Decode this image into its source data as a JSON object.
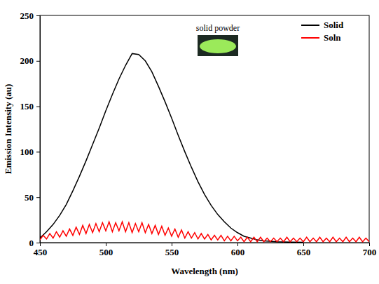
{
  "chart_data": {
    "type": "line",
    "x_label": "Wavelength (nm)",
    "y_label": "Emission Intensity (au)",
    "annotations": [
      "solid powder"
    ],
    "xlim": [
      450,
      700
    ],
    "xticks": [
      450,
      500,
      550,
      600,
      650,
      700
    ],
    "ylim": [
      0,
      250
    ],
    "yticks": [
      0,
      50,
      100,
      150,
      200,
      250
    ],
    "legend": "upper right",
    "series": [
      {
        "name": "Solid",
        "color": "#000000",
        "x": [
          450,
          455,
          460,
          465,
          470,
          475,
          480,
          485,
          490,
          495,
          500,
          505,
          510,
          515,
          520,
          525,
          530,
          535,
          540,
          545,
          550,
          555,
          560,
          565,
          570,
          575,
          580,
          585,
          590,
          595,
          600,
          605,
          610,
          615,
          620,
          630,
          640,
          650
        ],
        "values": [
          5,
          12,
          20,
          30,
          42,
          57,
          73,
          90,
          108,
          126,
          145,
          163,
          180,
          195,
          208,
          207,
          200,
          188,
          172,
          155,
          137,
          118,
          100,
          83,
          67,
          53,
          41,
          31,
          23,
          16,
          11,
          7,
          5,
          3,
          2,
          1,
          0.5,
          0.3
        ]
      },
      {
        "name": "Soln",
        "color": "#ff0000",
        "x": [
          450,
          452.5,
          455,
          457.5,
          460,
          462.5,
          465,
          467.5,
          470,
          472.5,
          475,
          477.5,
          480,
          482.5,
          485,
          487.5,
          490,
          492.5,
          495,
          497.5,
          500,
          502.5,
          505,
          507.5,
          510,
          512.5,
          515,
          517.5,
          520,
          522.5,
          525,
          527.5,
          530,
          532.5,
          535,
          537.5,
          540,
          542.5,
          545,
          547.5,
          550,
          552.5,
          555,
          557.5,
          560,
          562.5,
          565,
          567.5,
          570,
          572.5,
          575,
          577.5,
          580,
          582.5,
          585,
          587.5,
          590,
          592.5,
          595,
          597.5,
          600,
          602.5,
          605,
          607.5,
          610,
          612.5,
          615,
          617.5,
          620,
          622.5,
          625,
          627.5,
          630,
          632.5,
          635,
          637.5,
          640,
          642.5,
          645,
          647.5,
          650,
          652.5,
          655,
          657.5,
          660,
          662.5,
          665,
          667.5,
          670,
          672.5,
          675,
          677.5,
          680,
          682.5,
          685,
          687.5,
          690,
          692.5,
          695,
          697.5,
          700
        ],
        "values": [
          3,
          8,
          4,
          10,
          5,
          12,
          6,
          13,
          7,
          15,
          8,
          17,
          9,
          19,
          10,
          20,
          11,
          21,
          12,
          22,
          13,
          23,
          12,
          22,
          13,
          23,
          12,
          22,
          11,
          21,
          12,
          22,
          11,
          20,
          10,
          19,
          9,
          18,
          8,
          16,
          7,
          15,
          6,
          14,
          5,
          12,
          5,
          11,
          4,
          10,
          4,
          9,
          3,
          8,
          3,
          8,
          2,
          7,
          2,
          7,
          2,
          6,
          1,
          6,
          1,
          6,
          1,
          6,
          1,
          5,
          1,
          5,
          1,
          5,
          1,
          6,
          1,
          5,
          1,
          5,
          1,
          6,
          1,
          5,
          1,
          6,
          1,
          5,
          1,
          6,
          1,
          5,
          1,
          6,
          1,
          5,
          1,
          6,
          1,
          5,
          1
        ]
      }
    ]
  }
}
